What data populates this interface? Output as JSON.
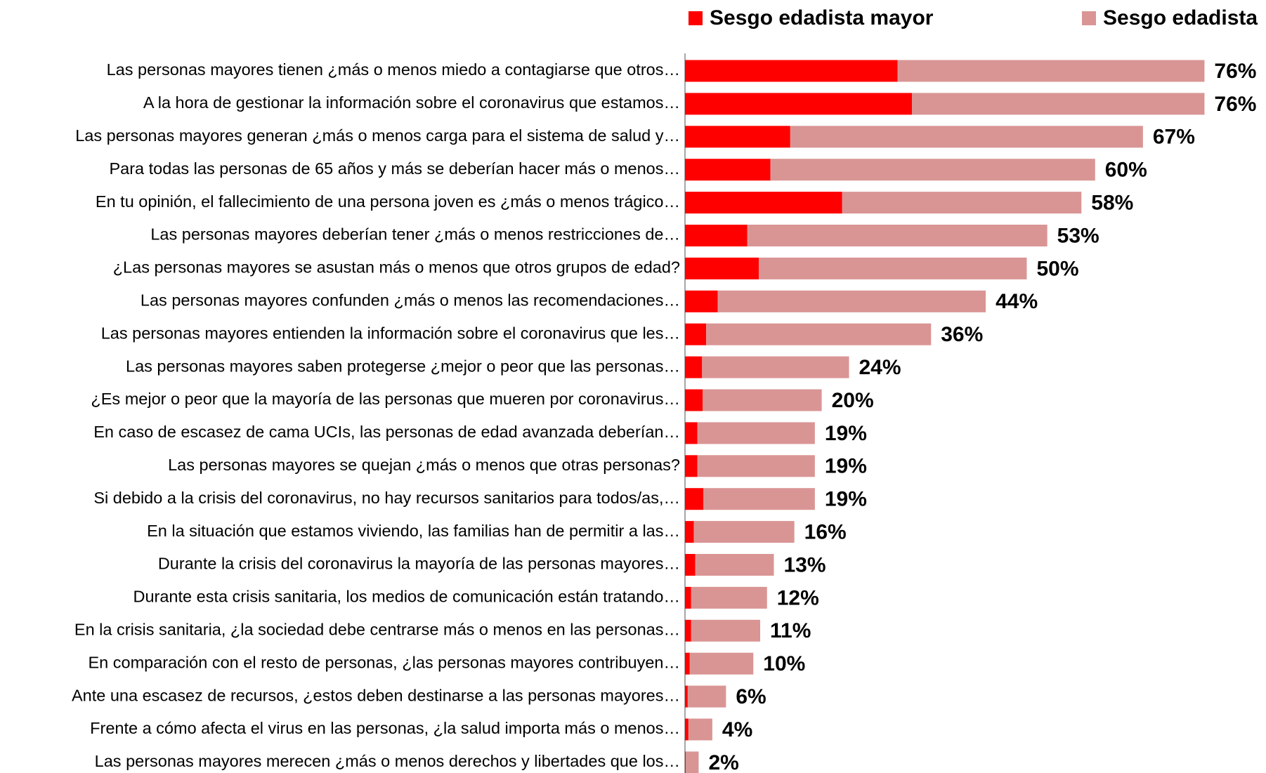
{
  "chart_data": {
    "type": "stacked-barh",
    "categories": [
      "Las personas mayores tienen ¿más o menos miedo a contagiarse que otros…",
      "A la hora de gestionar la información sobre el coronavirus que estamos…",
      "Las personas mayores generan ¿más o menos carga para el sistema de salud y…",
      "Para todas las personas de 65 años y más se deberían hacer más o menos…",
      "En tu opinión, el fallecimiento de una persona joven es ¿más o menos trágico…",
      "Las personas mayores deberían tener ¿más o menos restricciones de…",
      "¿Las personas mayores se asustan más o menos que otros grupos de edad?",
      "Las personas mayores confunden ¿más o menos las recomendaciones…",
      "Las personas mayores entienden la información sobre el coronavirus que les…",
      "Las personas mayores saben protegerse ¿mejor o peor que las personas…",
      "¿Es mejor o peor que la mayoría de las personas que mueren por coronavirus…",
      "En caso de escasez de cama UCIs, las personas de edad avanzada deberían…",
      "Las personas mayores se quejan ¿más o menos que otras personas?",
      "Si debido a la crisis del coronavirus, no hay recursos sanitarios para todos/as,…",
      "En la situación que estamos viviendo, las familias han de permitir a las…",
      "Durante la crisis del coronavirus la mayoría de las personas mayores…",
      "Durante esta crisis sanitaria, los medios de comunicación están tratando…",
      "En la crisis sanitaria, ¿la sociedad debe centrarse más o menos en las personas…",
      "En comparación con el resto de personas, ¿las personas mayores contribuyen…",
      "Ante una escasez de recursos, ¿estos deben destinarse a las personas mayores…",
      "Frente a cómo afecta el virus en las personas, ¿la salud importa más o menos…",
      "Las personas mayores merecen ¿más o menos derechos y libertades que los…"
    ],
    "series": [
      {
        "name": "Sesgo edadista mayor",
        "color": "#ff0000",
        "values": [
          31.1,
          33.2,
          15.4,
          12.5,
          23,
          9.1,
          10.8,
          4.8,
          3.1,
          2.5,
          2.6,
          1.8,
          1.8,
          2.7,
          1.3,
          1.5,
          0.9,
          0.9,
          0.7,
          0.4,
          0.5,
          0.1
        ]
      },
      {
        "name": "Sesgo edadista",
        "color": "#d99594",
        "values": [
          44.9,
          42.8,
          51.6,
          47.5,
          35,
          43.9,
          39.2,
          39.2,
          32.9,
          21.5,
          17.4,
          17.2,
          17.2,
          16.3,
          14.7,
          11.5,
          11.1,
          10.1,
          9.3,
          5.6,
          3.5,
          1.9
        ]
      }
    ],
    "totals": [
      76,
      76,
      67,
      60,
      58,
      53,
      50,
      44,
      36,
      24,
      20,
      19,
      19,
      19,
      16,
      13,
      12,
      11,
      10,
      6,
      4,
      2
    ],
    "total_labels": [
      "76%",
      "76%",
      "67%",
      "60%",
      "58%",
      "53%",
      "50%",
      "44%",
      "36%",
      "24%",
      "20%",
      "19%",
      "19%",
      "19%",
      "16%",
      "13%",
      "12%",
      "11%",
      "10%",
      "6%",
      "4%",
      "2%"
    ],
    "xlim": [
      0,
      85
    ]
  }
}
